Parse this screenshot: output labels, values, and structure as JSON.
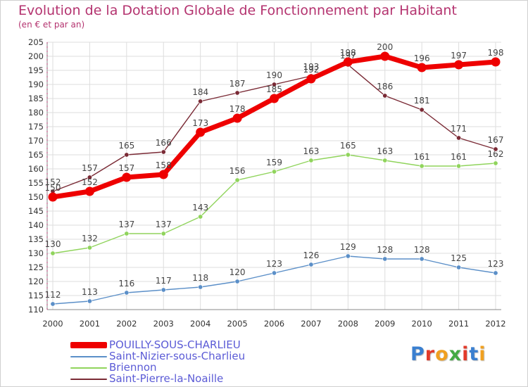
{
  "title": "Evolution de la Dotation Globale de Fonctionnement par Habitant",
  "subtitle": "(en € et par an)",
  "logo": {
    "text": "Proxiti",
    "colors": [
      "#3a7fd0",
      "#e23a2a",
      "#f0a020",
      "#44aa44",
      "#e23a2a",
      "#3a7fd0",
      "#f0a020"
    ]
  },
  "chart_data": {
    "type": "line",
    "x": [
      "2000",
      "2001",
      "2002",
      "2003",
      "2004",
      "2005",
      "2006",
      "2007",
      "2008",
      "2009",
      "2010",
      "2011",
      "2012"
    ],
    "ylim": [
      110,
      205
    ],
    "yticks": [
      110,
      115,
      120,
      125,
      130,
      135,
      140,
      145,
      150,
      155,
      160,
      165,
      170,
      175,
      180,
      185,
      190,
      195,
      200,
      205
    ],
    "grid": true,
    "legend_position": "bottom-left",
    "series": [
      {
        "name": "Saint-Nizier-sous-Charlieu",
        "color": "#5b8fc8",
        "values": [
          112,
          113,
          116,
          117,
          118,
          120,
          123,
          126,
          129,
          128,
          128,
          125,
          123
        ]
      },
      {
        "name": "Briennon",
        "color": "#90d45c",
        "values": [
          130,
          132,
          137,
          137,
          143,
          156,
          159,
          163,
          165,
          163,
          161,
          161,
          162
        ]
      },
      {
        "name": "Saint-Pierre-la-Noaille",
        "color": "#7a2a35",
        "values": [
          152,
          157,
          165,
          166,
          184,
          187,
          190,
          193,
          197,
          186,
          181,
          171,
          167
        ]
      },
      {
        "name": "POUILLY-SOUS-CHARLIEU",
        "color": "#ee0000",
        "values": [
          150,
          152,
          157,
          158,
          173,
          178,
          185,
          192,
          198,
          200,
          196,
          197,
          198
        ]
      }
    ]
  },
  "legend": [
    {
      "label": "POUILLY-SOUS-CHARLIEU",
      "color": "#ee0000"
    },
    {
      "label": "Saint-Nizier-sous-Charlieu",
      "color": "#5b8fc8"
    },
    {
      "label": "Briennon",
      "color": "#90d45c"
    },
    {
      "label": "Saint-Pierre-la-Noaille",
      "color": "#7a2a35"
    }
  ]
}
